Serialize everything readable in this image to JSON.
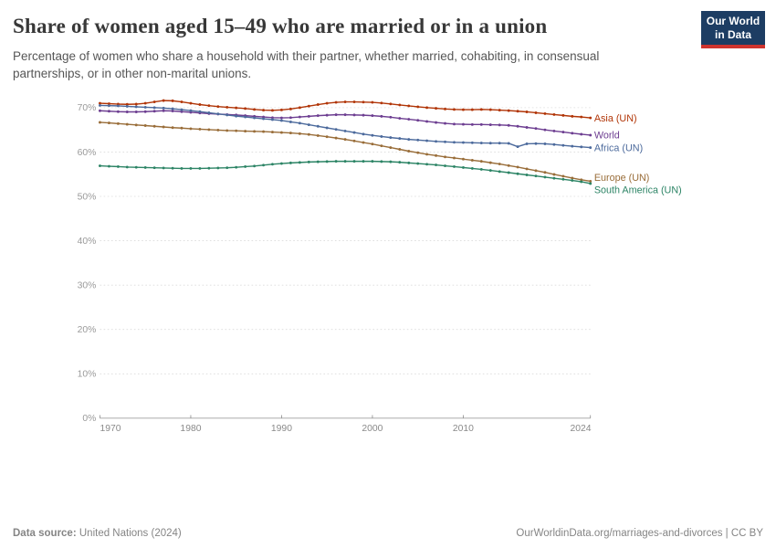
{
  "header": {
    "title": "Share of women aged 15–49 who are married or in a union",
    "subtitle": "Percentage of women who share a household with their partner, whether married, cohabiting, in consensual partnerships, or in other non-marital unions.",
    "logo": {
      "line1": "Our World",
      "line2": "in Data",
      "bg_color": "#1d3d63",
      "bar_color": "#cf342e"
    }
  },
  "footer": {
    "source_label": "Data source:",
    "source_value": " United Nations (2024)",
    "attribution": "OurWorldinData.org/marriages-and-divorces | CC BY"
  },
  "chart_data": {
    "type": "line",
    "title": "Share of women aged 15–49 who are married or in a union",
    "xlabel": "",
    "ylabel": "",
    "xlim": [
      1970,
      2024
    ],
    "ylim": [
      0,
      73
    ],
    "grid": "horizontal-dashed",
    "legend_position": "right-of-line-ends",
    "yticks": [
      {
        "value": 0,
        "label": "0%"
      },
      {
        "value": 10,
        "label": "10%"
      },
      {
        "value": 20,
        "label": "20%"
      },
      {
        "value": 30,
        "label": "30%"
      },
      {
        "value": 40,
        "label": "40%"
      },
      {
        "value": 50,
        "label": "50%"
      },
      {
        "value": 60,
        "label": "60%"
      },
      {
        "value": 70,
        "label": "70%"
      }
    ],
    "xticks": [
      {
        "year": 1970,
        "label": "1970"
      },
      {
        "year": 1980,
        "label": "1980"
      },
      {
        "year": 1990,
        "label": "1990"
      },
      {
        "year": 2000,
        "label": "2000"
      },
      {
        "year": 2010,
        "label": "2010"
      },
      {
        "year": 2024,
        "label": "2024"
      }
    ],
    "x": [
      1970,
      1971,
      1972,
      1973,
      1974,
      1975,
      1976,
      1977,
      1978,
      1979,
      1980,
      1981,
      1982,
      1983,
      1984,
      1985,
      1986,
      1987,
      1988,
      1989,
      1990,
      1991,
      1992,
      1993,
      1994,
      1995,
      1996,
      1997,
      1998,
      1999,
      2000,
      2001,
      2002,
      2003,
      2004,
      2005,
      2006,
      2007,
      2008,
      2009,
      2010,
      2011,
      2012,
      2013,
      2014,
      2015,
      2016,
      2017,
      2018,
      2019,
      2020,
      2021,
      2022,
      2023,
      2024
    ],
    "series": [
      {
        "name": "asia-un",
        "label": "Asia (UN)",
        "color": "#b13507",
        "values": [
          71.0,
          70.9,
          70.8,
          70.75,
          70.8,
          71.0,
          71.3,
          71.6,
          71.55,
          71.3,
          71.0,
          70.7,
          70.45,
          70.25,
          70.1,
          69.95,
          69.8,
          69.6,
          69.45,
          69.4,
          69.5,
          69.7,
          70.0,
          70.35,
          70.7,
          71.0,
          71.2,
          71.3,
          71.3,
          71.25,
          71.2,
          71.05,
          70.85,
          70.6,
          70.4,
          70.2,
          70.0,
          69.85,
          69.7,
          69.6,
          69.55,
          69.55,
          69.6,
          69.55,
          69.45,
          69.35,
          69.2,
          69.05,
          68.85,
          68.65,
          68.45,
          68.25,
          68.05,
          67.9,
          67.7
        ]
      },
      {
        "name": "world",
        "label": "World",
        "color": "#6d3e91",
        "values": [
          69.3,
          69.2,
          69.1,
          69.05,
          69.05,
          69.1,
          69.2,
          69.3,
          69.25,
          69.1,
          68.95,
          68.8,
          68.65,
          68.55,
          68.45,
          68.35,
          68.2,
          68.05,
          67.9,
          67.75,
          67.7,
          67.75,
          67.9,
          68.05,
          68.2,
          68.3,
          68.4,
          68.4,
          68.35,
          68.3,
          68.2,
          68.05,
          67.85,
          67.6,
          67.4,
          67.15,
          66.9,
          66.65,
          66.45,
          66.3,
          66.25,
          66.2,
          66.2,
          66.15,
          66.1,
          66.0,
          65.8,
          65.55,
          65.3,
          65.0,
          64.75,
          64.5,
          64.25,
          64.0,
          63.8
        ]
      },
      {
        "name": "africa-un",
        "label": "Africa (UN)",
        "color": "#4c6a9c",
        "values": [
          70.5,
          70.45,
          70.4,
          70.3,
          70.2,
          70.1,
          70.0,
          69.9,
          69.75,
          69.55,
          69.35,
          69.1,
          68.85,
          68.6,
          68.35,
          68.1,
          67.9,
          67.7,
          67.5,
          67.3,
          67.1,
          66.8,
          66.5,
          66.15,
          65.8,
          65.45,
          65.1,
          64.75,
          64.4,
          64.05,
          63.75,
          63.5,
          63.25,
          63.05,
          62.85,
          62.7,
          62.55,
          62.4,
          62.3,
          62.2,
          62.15,
          62.1,
          62.05,
          62.0,
          62.0,
          61.95,
          61.2,
          61.85,
          61.9,
          61.85,
          61.7,
          61.5,
          61.3,
          61.15,
          61.0
        ]
      },
      {
        "name": "europe-un",
        "label": "Europe (UN)",
        "color": "#996d39",
        "values": [
          66.7,
          66.55,
          66.4,
          66.25,
          66.1,
          65.95,
          65.8,
          65.65,
          65.5,
          65.4,
          65.25,
          65.15,
          65.05,
          64.95,
          64.85,
          64.8,
          64.7,
          64.65,
          64.6,
          64.5,
          64.4,
          64.3,
          64.15,
          63.95,
          63.7,
          63.45,
          63.15,
          62.85,
          62.5,
          62.15,
          61.8,
          61.4,
          61.0,
          60.6,
          60.2,
          59.85,
          59.5,
          59.2,
          58.9,
          58.65,
          58.4,
          58.15,
          57.9,
          57.6,
          57.3,
          56.95,
          56.6,
          56.2,
          55.8,
          55.4,
          54.95,
          54.55,
          54.15,
          53.75,
          53.4
        ]
      },
      {
        "name": "south-america-un",
        "label": "South America (UN)",
        "color": "#2c8465",
        "values": [
          56.9,
          56.8,
          56.7,
          56.6,
          56.55,
          56.5,
          56.45,
          56.4,
          56.35,
          56.3,
          56.3,
          56.3,
          56.35,
          56.4,
          56.45,
          56.55,
          56.7,
          56.85,
          57.05,
          57.25,
          57.4,
          57.55,
          57.65,
          57.75,
          57.8,
          57.85,
          57.9,
          57.9,
          57.9,
          57.9,
          57.9,
          57.85,
          57.8,
          57.7,
          57.55,
          57.4,
          57.25,
          57.1,
          56.9,
          56.7,
          56.5,
          56.3,
          56.1,
          55.85,
          55.6,
          55.35,
          55.1,
          54.85,
          54.6,
          54.35,
          54.1,
          53.85,
          53.6,
          53.3,
          52.9
        ]
      }
    ],
    "axis_colors": {
      "grid": "#dcdcdc",
      "axis_line": "#8f8f8f",
      "tick_label": "#9a9a9a"
    }
  }
}
